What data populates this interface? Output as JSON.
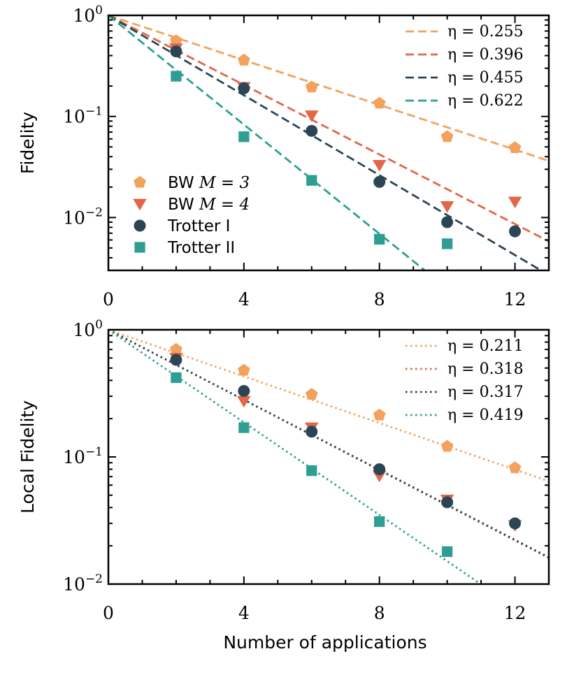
{
  "colors": {
    "bw3": "#F3A25E",
    "bw4": "#E1664A",
    "trotter1": "#2B4555",
    "trotter2": "#2E9E92"
  },
  "shared": {
    "xlabel": "Number of applications",
    "xticks": [
      "0",
      "4",
      "8",
      "12"
    ],
    "xtick_values": [
      0,
      4,
      8,
      12
    ]
  },
  "chart_data": [
    {
      "type": "scatter",
      "ylabel": "Fidelity",
      "xlim": [
        0,
        13
      ],
      "ylim": [
        0.003,
        1
      ],
      "yscale": "log",
      "yticks": [
        {
          "value": 1,
          "base": "10",
          "exp": "0"
        },
        {
          "value": 0.1,
          "base": "10",
          "exp": "−1"
        },
        {
          "value": 0.01,
          "base": "10",
          "exp": "−2"
        }
      ],
      "legend_fits_placement": "top-right",
      "legend_markers_placement": "bottom-left",
      "series": [
        {
          "name": "BW M = 3",
          "label_prefix": "BW ",
          "label_math": "M = 3",
          "marker": "pentagon",
          "color_key": "bw3",
          "x": [
            2,
            4,
            6,
            8,
            10,
            12
          ],
          "y": [
            0.56,
            0.36,
            0.195,
            0.135,
            0.063,
            0.049
          ]
        },
        {
          "name": "BW M = 4",
          "label_prefix": "BW ",
          "label_math": "M = 4",
          "marker": "triangle-down",
          "color_key": "bw4",
          "x": [
            2,
            4,
            6,
            8,
            10,
            12
          ],
          "y": [
            0.47,
            0.195,
            0.102,
            0.033,
            0.0129,
            0.0143
          ]
        },
        {
          "name": "Trotter I",
          "label_prefix": "Trotter I",
          "label_math": "",
          "marker": "circle",
          "color_key": "trotter1",
          "x": [
            2,
            4,
            6,
            8,
            10,
            12
          ],
          "y": [
            0.44,
            0.19,
            0.072,
            0.0225,
            0.009,
            0.0073
          ]
        },
        {
          "name": "Trotter II",
          "label_prefix": "Trotter II",
          "label_math": "",
          "marker": "square",
          "color_key": "trotter2",
          "x": [
            2,
            4,
            6,
            8,
            10
          ],
          "y": [
            0.25,
            0.063,
            0.0233,
            0.0061,
            0.0055
          ]
        }
      ],
      "fits": [
        {
          "label": "η = 0.255",
          "eta": 0.255,
          "style": "dashed",
          "color_key": "bw3"
        },
        {
          "label": "η = 0.396",
          "eta": 0.396,
          "style": "dashed",
          "color_key": "bw4"
        },
        {
          "label": "η = 0.455",
          "eta": 0.455,
          "style": "dashed",
          "color_key": "trotter1"
        },
        {
          "label": "η = 0.622",
          "eta": 0.622,
          "style": "dashed",
          "color_key": "trotter2"
        }
      ]
    },
    {
      "type": "scatter",
      "ylabel": "Local Fidelity",
      "xlabel": "Number of applications",
      "xlim": [
        0,
        13
      ],
      "ylim": [
        0.01,
        1
      ],
      "yscale": "log",
      "yticks": [
        {
          "value": 1,
          "base": "10",
          "exp": "0"
        },
        {
          "value": 0.1,
          "base": "10",
          "exp": "−1"
        },
        {
          "value": 0.01,
          "base": "10",
          "exp": "−2"
        }
      ],
      "legend_fits_placement": "top-right",
      "series": [
        {
          "name": "BW M = 3",
          "marker": "pentagon",
          "color_key": "bw3",
          "x": [
            2,
            4,
            6,
            8,
            10,
            12
          ],
          "y": [
            0.7,
            0.48,
            0.31,
            0.213,
            0.121,
            0.082
          ]
        },
        {
          "name": "BW M = 4",
          "marker": "triangle-down",
          "color_key": "bw4",
          "x": [
            2,
            4,
            6,
            8,
            10,
            12
          ],
          "y": [
            0.6,
            0.275,
            0.17,
            0.071,
            0.046,
            0.029
          ]
        },
        {
          "name": "Trotter I",
          "marker": "circle",
          "color_key": "trotter1",
          "x": [
            2,
            4,
            6,
            8,
            10,
            12
          ],
          "y": [
            0.58,
            0.33,
            0.158,
            0.08,
            0.044,
            0.03
          ]
        },
        {
          "name": "Trotter II",
          "marker": "square",
          "color_key": "trotter2",
          "x": [
            2,
            4,
            6,
            8,
            10
          ],
          "y": [
            0.42,
            0.17,
            0.078,
            0.031,
            0.018
          ]
        }
      ],
      "fits": [
        {
          "label": "η = 0.211",
          "eta": 0.211,
          "style": "dotted",
          "color_key": "bw3"
        },
        {
          "label": "η = 0.318",
          "eta": 0.318,
          "style": "dotted",
          "color_key": "bw4"
        },
        {
          "label": "η = 0.317",
          "eta": 0.317,
          "style": "dotted",
          "color_key": "trotter1"
        },
        {
          "label": "η = 0.419",
          "eta": 0.419,
          "style": "dotted",
          "color_key": "trotter2"
        }
      ]
    }
  ]
}
